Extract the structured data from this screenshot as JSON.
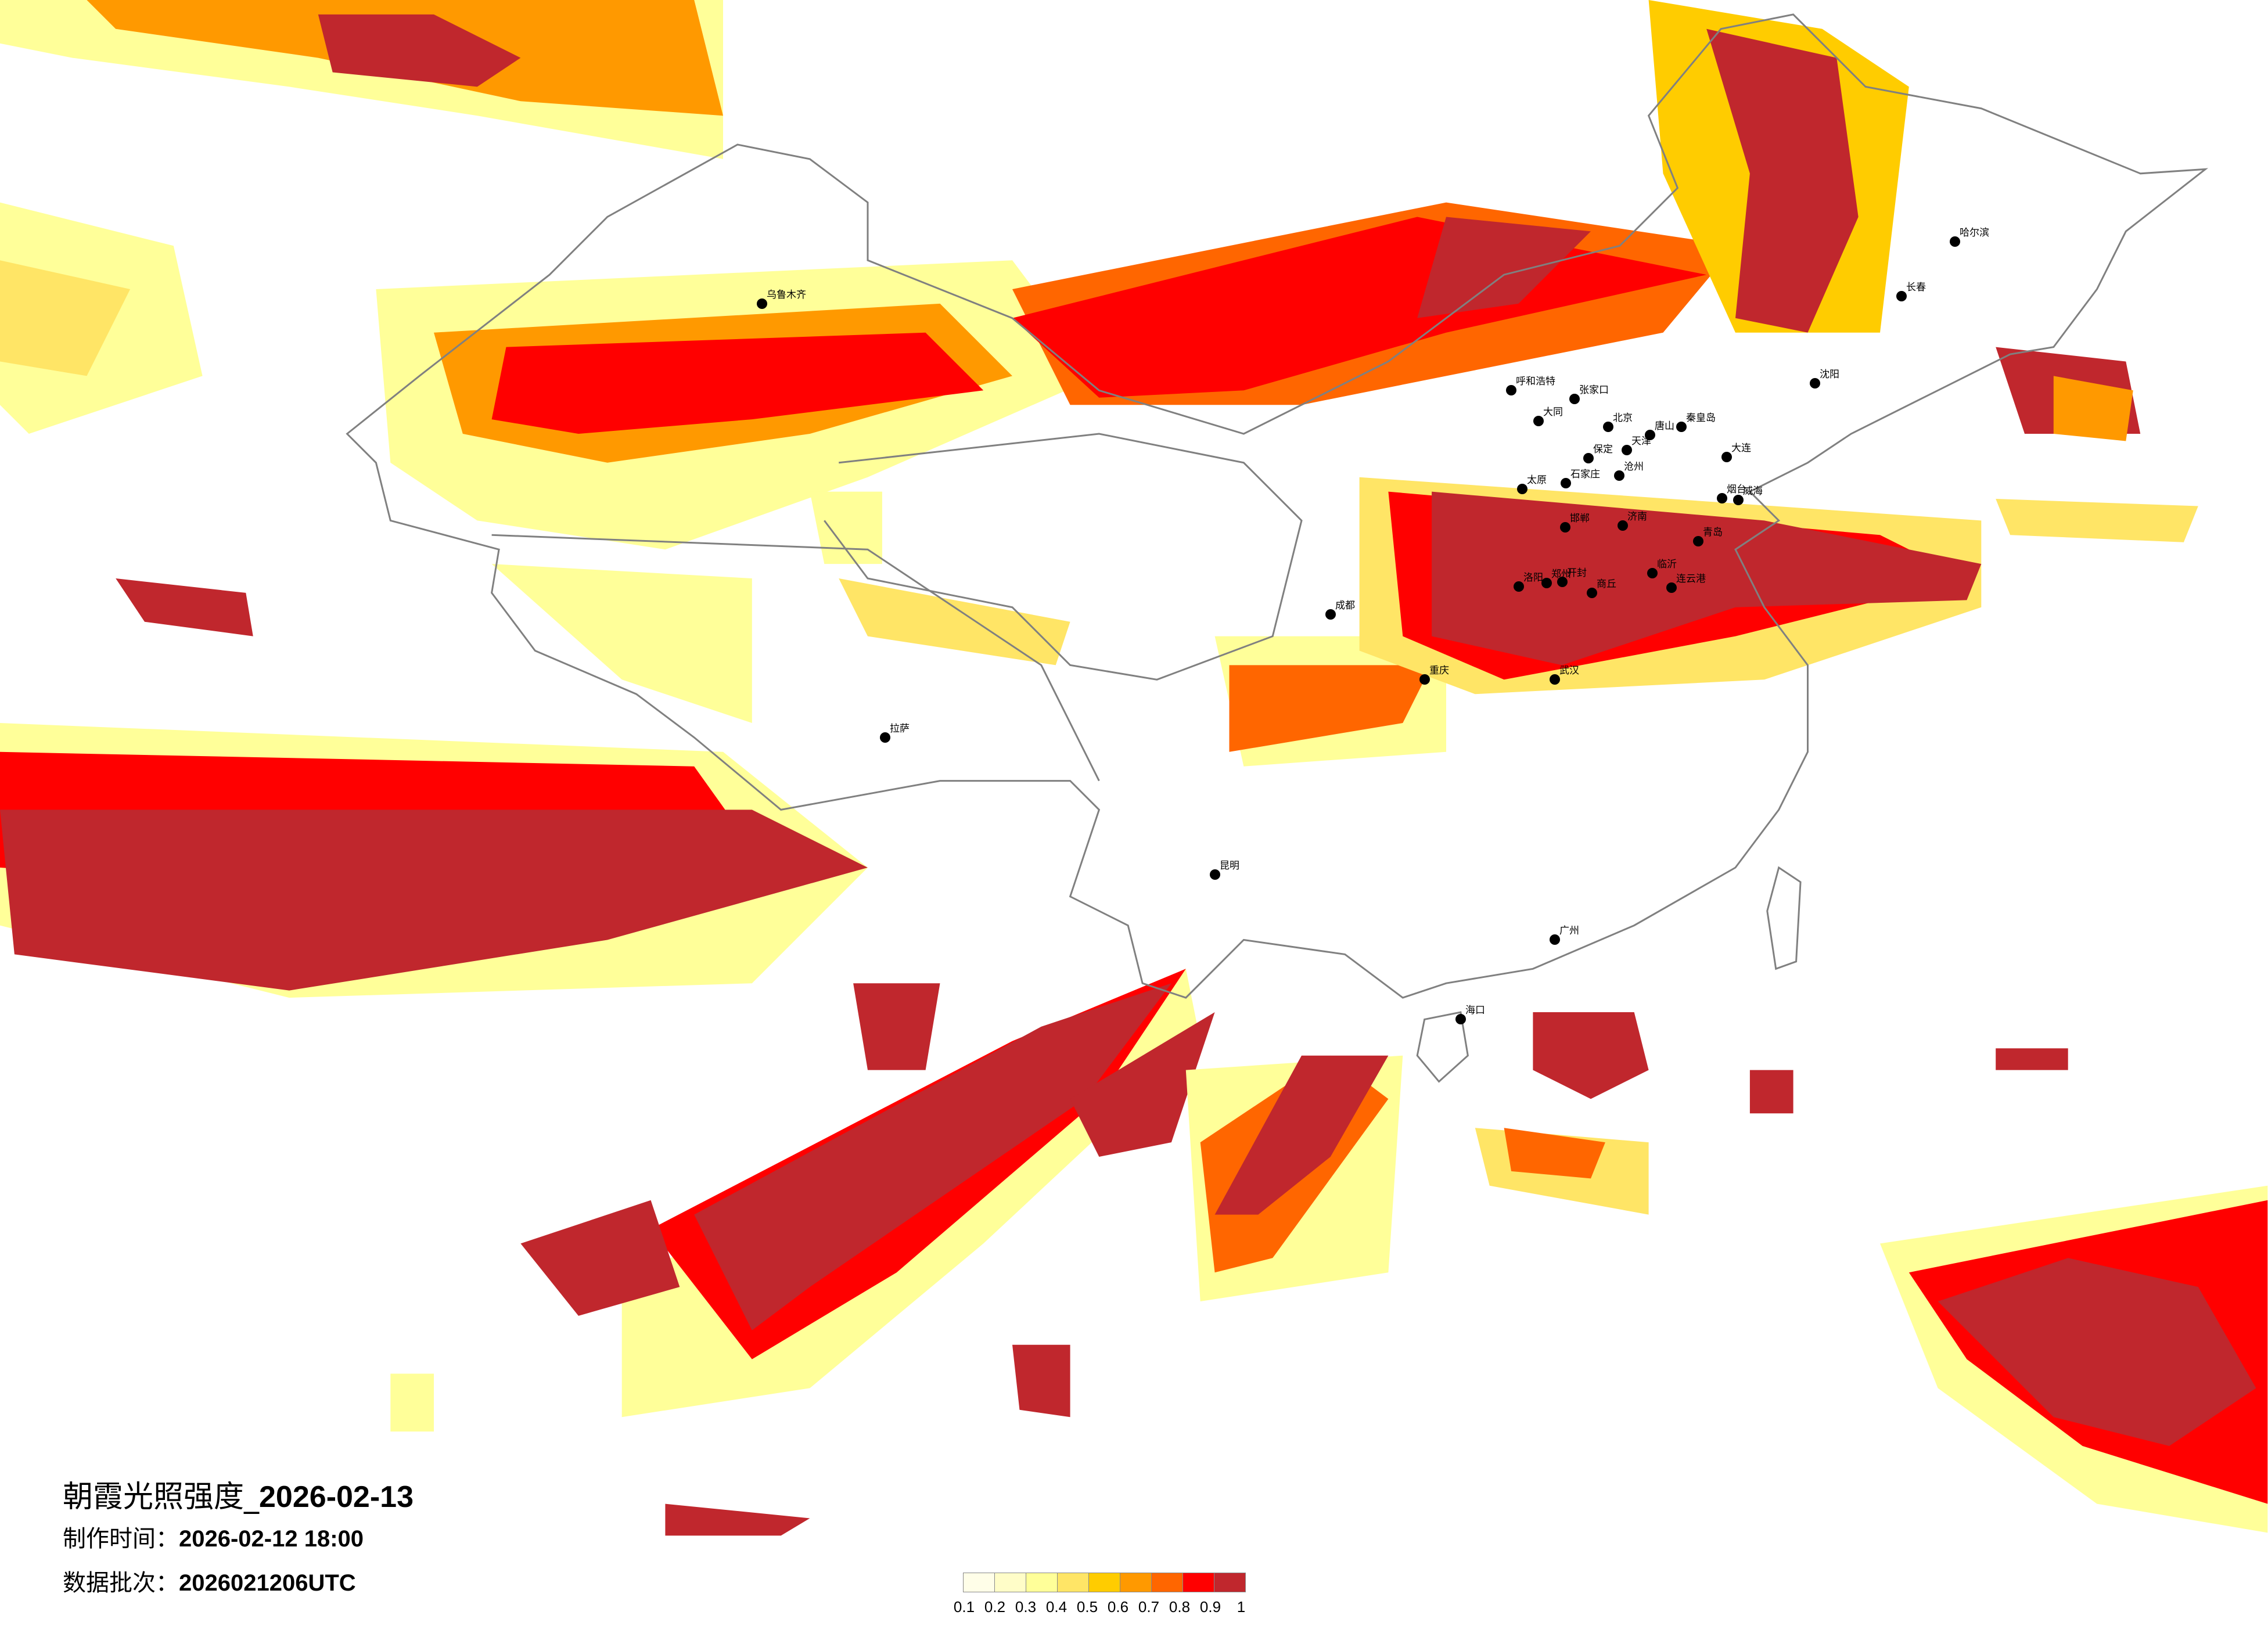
{
  "title": {
    "prefix": "朝霞光照强度_",
    "date": "2026-02-13"
  },
  "made_time": {
    "label": "制作时间：",
    "value": "2026-02-12 18:00"
  },
  "data_batch": {
    "label": "数据批次：",
    "value": "2026021206UTC"
  },
  "legend": {
    "colors": [
      "#FFFEE8",
      "#FFFDC8",
      "#FFFF99",
      "#FFE566",
      "#FFCC00",
      "#FF9900",
      "#FF6600",
      "#FF0000",
      "#C0272D"
    ],
    "labels": [
      "0.1",
      "0.2",
      "0.3",
      "0.4",
      "0.5",
      "0.6",
      "0.7",
      "0.8",
      "0.9",
      "1"
    ]
  },
  "map": {
    "boundary_color": "#808080",
    "city_dot_color": "#000000",
    "cities": [
      "北京",
      "天津",
      "石家庄",
      "太原",
      "济南",
      "青岛",
      "郑州",
      "大连",
      "张家口",
      "大同",
      "保定",
      "唐山",
      "秦皇岛",
      "沧州",
      "邯郸",
      "洛阳",
      "开封",
      "烟台",
      "威海",
      "临沂",
      "连云港",
      "商丘",
      "武汉",
      "成都",
      "重庆",
      "广州",
      "乌鲁木齐",
      "拉萨",
      "哈尔滨",
      "长春",
      "沈阳",
      "呼和浩特",
      "昆明",
      "海口"
    ]
  }
}
